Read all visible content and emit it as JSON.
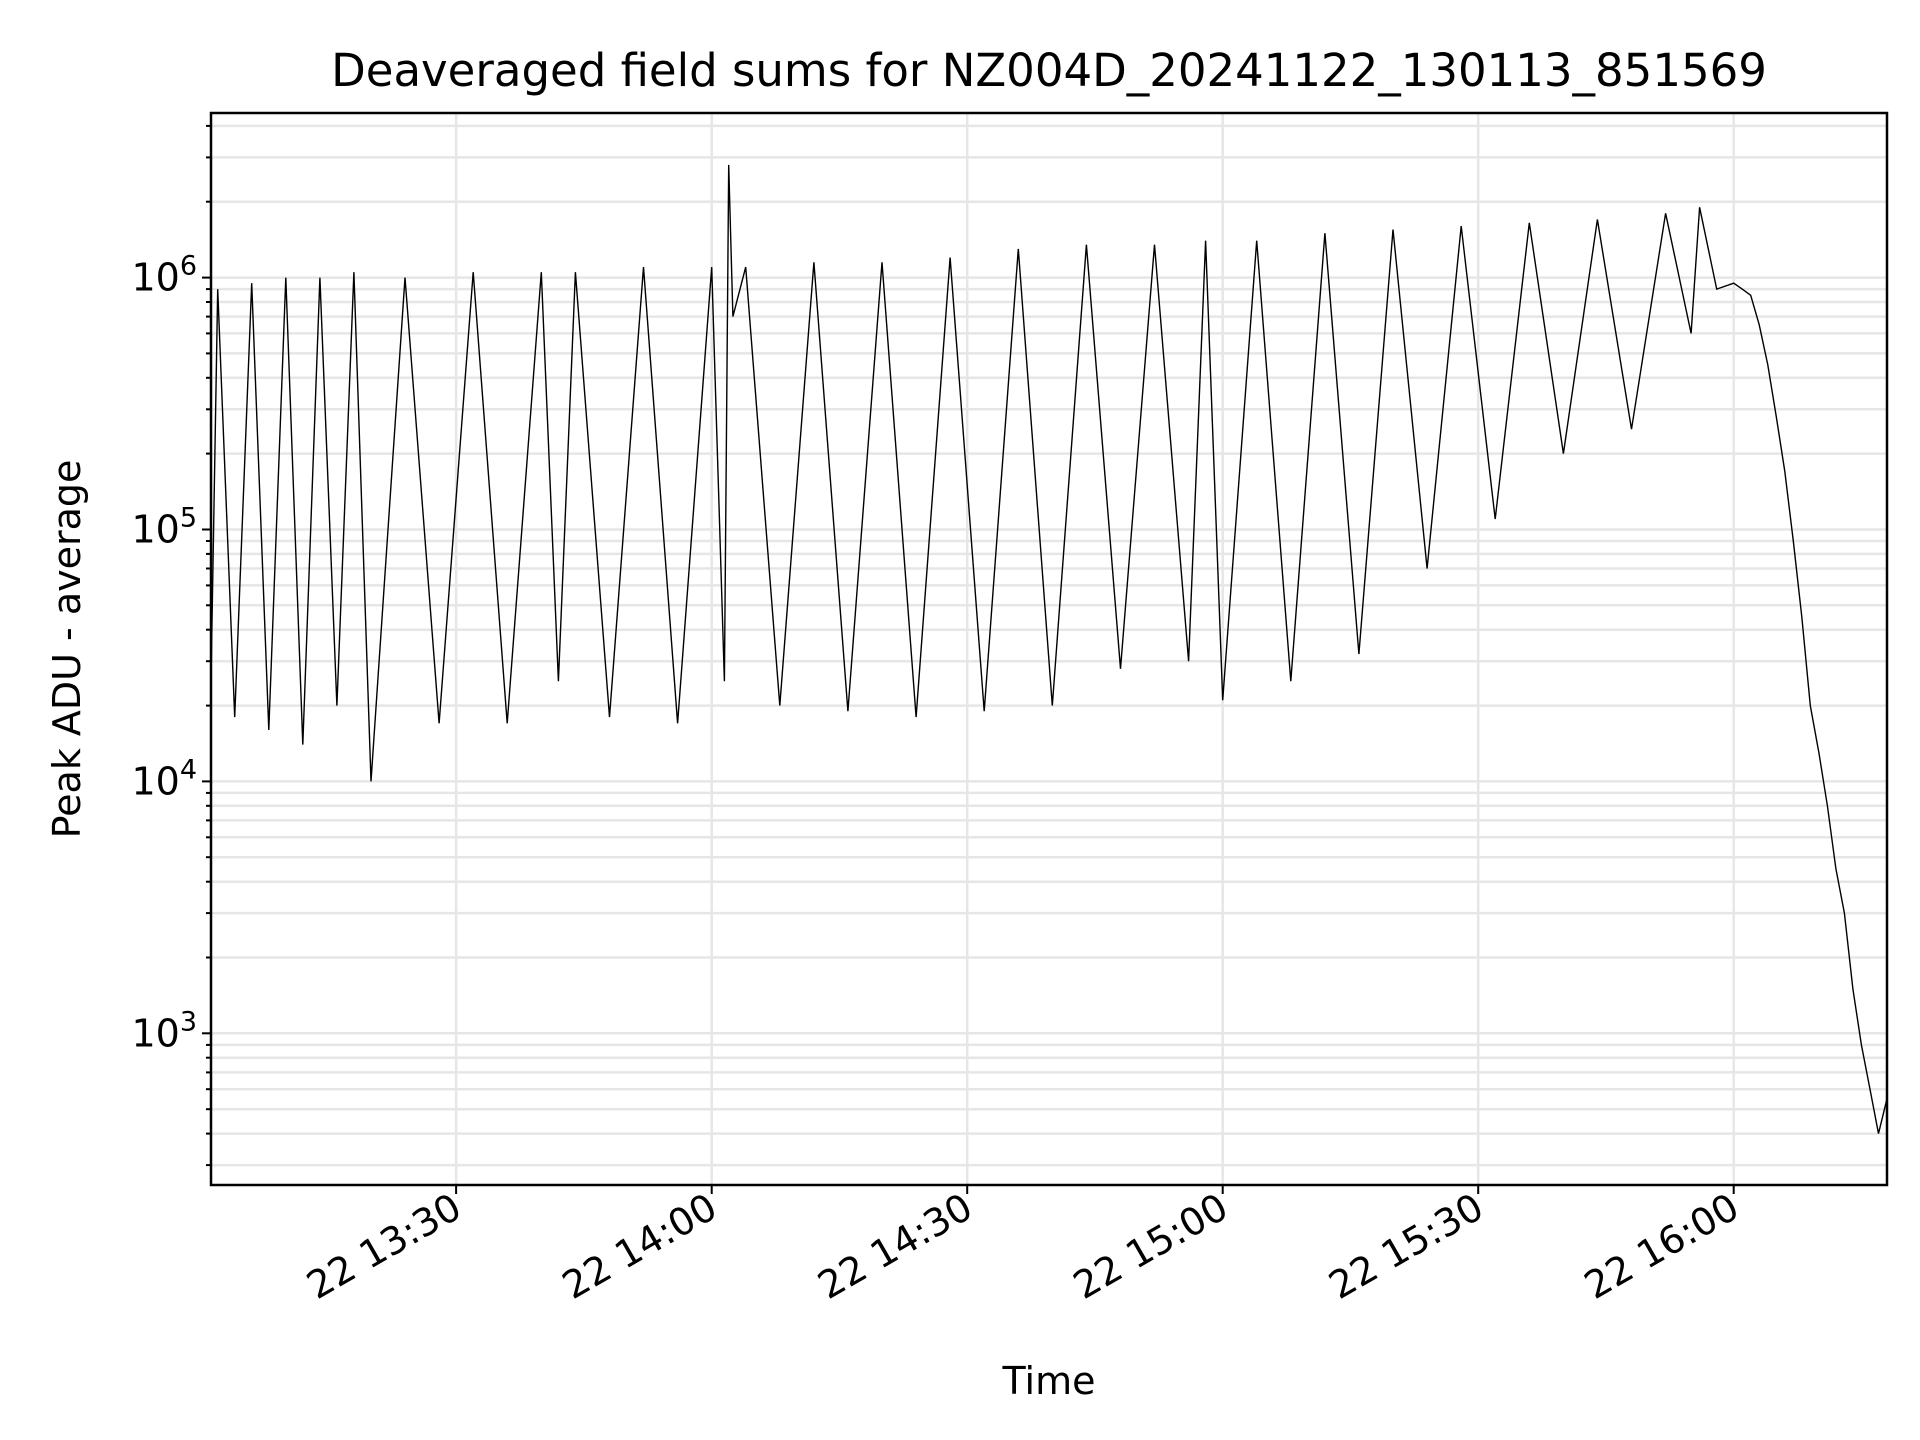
{
  "chart_data": {
    "type": "line",
    "title": "Deaveraged field sums for NZ004D_20241122_130113_851569",
    "xlabel": "Time",
    "ylabel": "Peak ADU - average",
    "yscale": "log",
    "grid": true,
    "xlim": [
      "2024-11-22 13:01:13",
      "2024-11-22 16:18:00"
    ],
    "ylim": [
      250,
      4500000
    ],
    "x_ticks": [
      {
        "time": "2024-11-22 13:30",
        "label": "22 13:30"
      },
      {
        "time": "2024-11-22 14:00",
        "label": "22 14:00"
      },
      {
        "time": "2024-11-22 14:30",
        "label": "22 14:30"
      },
      {
        "time": "2024-11-22 15:00",
        "label": "22 15:00"
      },
      {
        "time": "2024-11-22 15:30",
        "label": "22 15:30"
      },
      {
        "time": "2024-11-22 16:00",
        "label": "22 16:00"
      }
    ],
    "y_ticks": [
      {
        "value": 1000,
        "base": "10",
        "exp": "3"
      },
      {
        "value": 10000,
        "base": "10",
        "exp": "4"
      },
      {
        "value": 100000,
        "base": "10",
        "exp": "5"
      },
      {
        "value": 1000000,
        "base": "10",
        "exp": "6"
      }
    ],
    "series": [
      {
        "color": "#000000",
        "x": [
          "2024-11-22 13:01:13",
          "2024-11-22 13:02:00",
          "2024-11-22 13:04:00",
          "2024-11-22 13:06:00",
          "2024-11-22 13:08:00",
          "2024-11-22 13:10:00",
          "2024-11-22 13:12:00",
          "2024-11-22 13:14:00",
          "2024-11-22 13:16:00",
          "2024-11-22 13:18:00",
          "2024-11-22 13:20:00",
          "2024-11-22 13:24:00",
          "2024-11-22 13:28:00",
          "2024-11-22 13:32:00",
          "2024-11-22 13:36:00",
          "2024-11-22 13:40:00",
          "2024-11-22 13:42:00",
          "2024-11-22 13:44:00",
          "2024-11-22 13:48:00",
          "2024-11-22 13:52:00",
          "2024-11-22 13:56:00",
          "2024-11-22 14:00:00",
          "2024-11-22 14:01:30",
          "2024-11-22 14:02:00",
          "2024-11-22 14:02:30",
          "2024-11-22 14:04:00",
          "2024-11-22 14:08:00",
          "2024-11-22 14:12:00",
          "2024-11-22 14:16:00",
          "2024-11-22 14:20:00",
          "2024-11-22 14:24:00",
          "2024-11-22 14:28:00",
          "2024-11-22 14:32:00",
          "2024-11-22 14:36:00",
          "2024-11-22 14:40:00",
          "2024-11-22 14:44:00",
          "2024-11-22 14:48:00",
          "2024-11-22 14:52:00",
          "2024-11-22 14:56:00",
          "2024-11-22 14:58:00",
          "2024-11-22 15:00:00",
          "2024-11-22 15:04:00",
          "2024-11-22 15:08:00",
          "2024-11-22 15:12:00",
          "2024-11-22 15:16:00",
          "2024-11-22 15:20:00",
          "2024-11-22 15:24:00",
          "2024-11-22 15:28:00",
          "2024-11-22 15:32:00",
          "2024-11-22 15:36:00",
          "2024-11-22 15:40:00",
          "2024-11-22 15:44:00",
          "2024-11-22 15:48:00",
          "2024-11-22 15:52:00",
          "2024-11-22 15:55:00",
          "2024-11-22 15:56:00",
          "2024-11-22 15:58:00",
          "2024-11-22 16:00:00",
          "2024-11-22 16:01:00",
          "2024-11-22 16:02:00",
          "2024-11-22 16:03:00",
          "2024-11-22 16:04:00",
          "2024-11-22 16:05:00",
          "2024-11-22 16:06:00",
          "2024-11-22 16:07:00",
          "2024-11-22 16:08:00",
          "2024-11-22 16:09:00",
          "2024-11-22 16:10:00",
          "2024-11-22 16:11:00",
          "2024-11-22 16:12:00",
          "2024-11-22 16:13:00",
          "2024-11-22 16:14:00",
          "2024-11-22 16:15:00",
          "2024-11-22 16:16:00",
          "2024-11-22 16:17:00",
          "2024-11-22 16:18:00"
        ],
        "y": [
          25000,
          900000,
          18000,
          950000,
          16000,
          1000000,
          14000,
          1000000,
          20000,
          1050000,
          10000,
          1000000,
          17000,
          1050000,
          17000,
          1050000,
          25000,
          1050000,
          18000,
          1100000,
          17000,
          1100000,
          25000,
          2800000,
          700000,
          1100000,
          20000,
          1150000,
          19000,
          1150000,
          18000,
          1200000,
          19000,
          1300000,
          20000,
          1350000,
          28000,
          1350000,
          30000,
          1400000,
          21000,
          1400000,
          25000,
          1500000,
          32000,
          1550000,
          70000,
          1600000,
          110000,
          1650000,
          200000,
          1700000,
          250000,
          1800000,
          600000,
          1900000,
          900000,
          950000,
          900000,
          850000,
          650000,
          450000,
          280000,
          170000,
          90000,
          45000,
          20000,
          13000,
          8000,
          4500,
          3000,
          1500,
          900,
          600,
          400,
          550
        ]
      }
    ]
  }
}
